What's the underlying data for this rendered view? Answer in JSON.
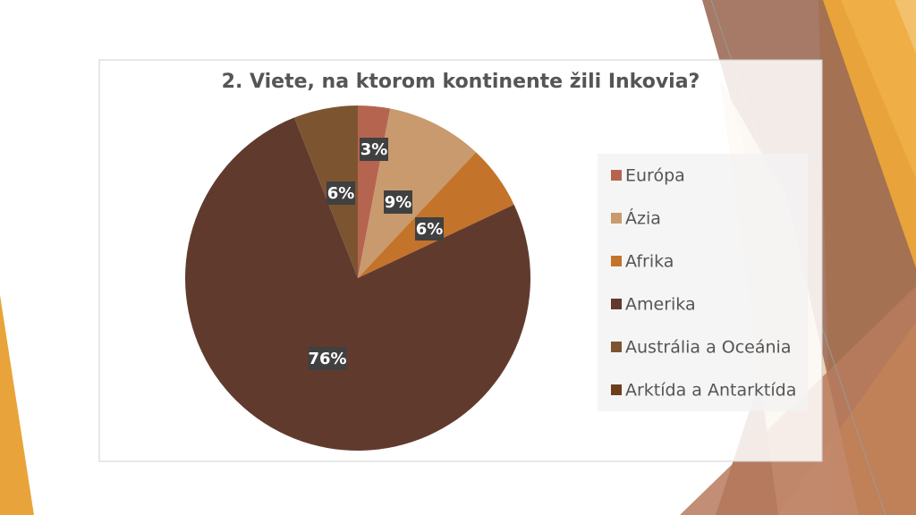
{
  "chart_data": {
    "type": "pie",
    "title": "2. Viete, na ktorom kontinente žili Inkovia?",
    "categories": [
      "Európa",
      "Ázia",
      "Afrika",
      "Amerika",
      "Austrália a Oceánia",
      "Arktída a Antarktída"
    ],
    "values": [
      3,
      9,
      6,
      76,
      6,
      0
    ],
    "value_labels": [
      "3%",
      "9%",
      "6%",
      "76%",
      "6%",
      null
    ],
    "colors": [
      "#b5654f",
      "#c89a6e",
      "#c4732a",
      "#613a2e",
      "#7d5430",
      "#6e3f1e"
    ],
    "legend": "right"
  }
}
